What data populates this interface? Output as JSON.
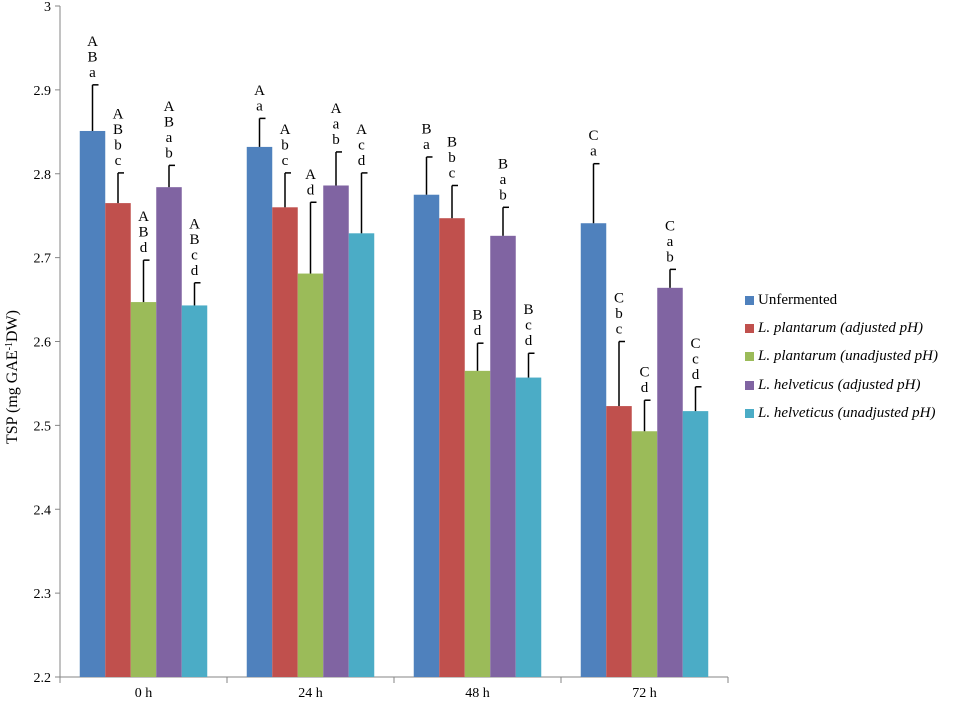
{
  "chart_data": {
    "type": "bar",
    "title": "",
    "xlabel": "",
    "ylabel": "TSP (mg GAE-1DW)",
    "ylabel_parts": {
      "main": "TSP (mg  GAE",
      "sup": "-1",
      "tail": "DW)"
    },
    "ylim": [
      2.2,
      3.0
    ],
    "yticks": [
      "2.2",
      "2.3",
      "2.4",
      "2.5",
      "2.6",
      "2.7",
      "2.8",
      "2.9",
      "3"
    ],
    "grid": false,
    "legend_position": "right",
    "categories": [
      "0 h",
      "24 h",
      "48 h",
      "72 h"
    ],
    "series": [
      {
        "name": "Unfermented",
        "species": "",
        "qualifier": "Unfermented",
        "color": "#4F81BD",
        "values": [
          2.851,
          2.832,
          2.775,
          2.741
        ],
        "errors": [
          0.055,
          0.034,
          0.045,
          0.071
        ],
        "labels": [
          [
            "A",
            "B",
            "a"
          ],
          [
            "A",
            "a"
          ],
          [
            "B",
            "a"
          ],
          [
            "C",
            "a"
          ]
        ]
      },
      {
        "name": "L. plantarum (adjusted pH)",
        "species": "L. plantarum",
        "qualifier": " (adjusted pH)",
        "color": "#C0504D",
        "values": [
          2.765,
          2.76,
          2.747,
          2.523
        ],
        "errors": [
          0.036,
          0.041,
          0.039,
          0.077
        ],
        "labels": [
          [
            "A",
            "B",
            "b",
            "c"
          ],
          [
            "A",
            "b",
            "c"
          ],
          [
            "B",
            "b",
            "c"
          ],
          [
            "C",
            "b",
            "c"
          ]
        ]
      },
      {
        "name": "L. plantarum (unadjusted pH)",
        "species": "L. plantarum",
        "qualifier": " (unadjusted pH)",
        "color": "#9BBB59",
        "values": [
          2.647,
          2.681,
          2.565,
          2.493
        ],
        "errors": [
          0.05,
          0.085,
          0.033,
          0.037
        ],
        "labels": [
          [
            "A",
            "B",
            "d"
          ],
          [
            "A",
            "d"
          ],
          [
            "B",
            "d"
          ],
          [
            "C",
            "d"
          ]
        ]
      },
      {
        "name": "L. helveticus (adjusted pH)",
        "species": "L. helveticus",
        "qualifier": " (adjusted pH)",
        "color": "#8064A2",
        "values": [
          2.784,
          2.786,
          2.726,
          2.664
        ],
        "errors": [
          0.026,
          0.04,
          0.034,
          0.022
        ],
        "labels": [
          [
            "A",
            "B",
            "a",
            "b"
          ],
          [
            "A",
            "a",
            "b"
          ],
          [
            "B",
            "a",
            "b"
          ],
          [
            "C",
            "a",
            "b"
          ]
        ]
      },
      {
        "name": "L. helveticus (unadjusted pH)",
        "species": "L. helveticus",
        "qualifier": " (unadjusted pH)",
        "color": "#4BACC6",
        "values": [
          2.643,
          2.729,
          2.557,
          2.517
        ],
        "errors": [
          0.027,
          0.072,
          0.029,
          0.029
        ],
        "labels": [
          [
            "A",
            "B",
            "c",
            "d"
          ],
          [
            "A",
            "c",
            "d"
          ],
          [
            "B",
            "c",
            "d"
          ],
          [
            "C",
            "c",
            "d"
          ]
        ]
      }
    ]
  }
}
